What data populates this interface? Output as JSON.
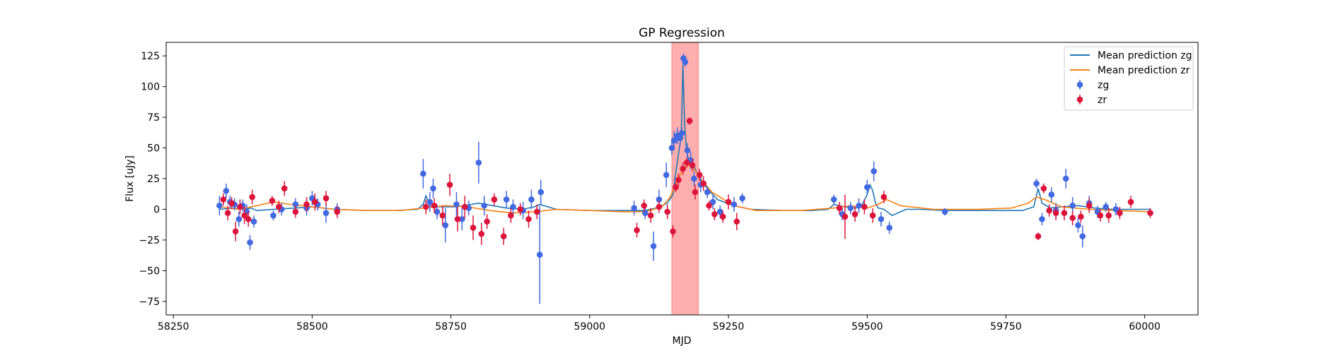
{
  "chart_data": {
    "type": "scatter",
    "title": "GP Regression",
    "xlabel": "MJD",
    "ylabel": "Flux [uJy]",
    "xlim": [
      58237,
      60096
    ],
    "ylim": [
      -86,
      136
    ],
    "xticks": [
      58250,
      58500,
      58750,
      59000,
      59250,
      59500,
      59750,
      60000
    ],
    "yticks": [
      -75,
      -50,
      -25,
      0,
      25,
      50,
      75,
      100,
      125
    ],
    "legend_position": "top-right",
    "highlight_span": {
      "x0": 59148,
      "x1": 59196,
      "color": "#ff6b6b"
    },
    "series": [
      {
        "name": "Mean prediction zg",
        "kind": "line",
        "color": "#1f77b4",
        "x": [
          58333,
          58360,
          58380,
          58390,
          58400,
          58430,
          58470,
          58500,
          58540,
          58600,
          58650,
          58690,
          58700,
          58705,
          58712,
          58730,
          58760,
          58800,
          58850,
          58880,
          58900,
          58910,
          58940,
          59000,
          59080,
          59100,
          59120,
          59140,
          59150,
          59155,
          59160,
          59165,
          59168,
          59171,
          59174,
          59178,
          59185,
          59195,
          59210,
          59230,
          59260,
          59290,
          59350,
          59400,
          59430,
          59440,
          59460,
          59480,
          59490,
          59500,
          59505,
          59510,
          59515,
          59520,
          59530,
          59545,
          59570,
          59600,
          59640,
          59700,
          59780,
          59800,
          59808,
          59815,
          59830,
          59850,
          59880,
          59910,
          59940,
          59970,
          60010
        ],
        "y": [
          0,
          1,
          0,
          1,
          -1,
          0,
          1,
          2,
          0,
          -1,
          -1,
          0,
          4,
          11,
          3,
          2,
          2,
          5,
          1,
          0,
          2,
          4,
          0,
          -1,
          -1,
          -1,
          1,
          5,
          12,
          30,
          45,
          60,
          118,
          70,
          50,
          40,
          38,
          28,
          18,
          8,
          3,
          0,
          -1,
          -1,
          0,
          4,
          2,
          1,
          3,
          12,
          20,
          15,
          5,
          1,
          0,
          -5,
          0,
          0,
          -1,
          -1,
          -1,
          2,
          17,
          5,
          1,
          2,
          3,
          1,
          0,
          0,
          0
        ]
      },
      {
        "name": "Mean prediction zr",
        "kind": "line",
        "color": "#ff7f0e",
        "x": [
          58333,
          58370,
          58400,
          58430,
          58460,
          58500,
          58540,
          58600,
          58660,
          58700,
          58740,
          58780,
          58820,
          58860,
          58900,
          58940,
          59000,
          59060,
          59100,
          59130,
          59145,
          59155,
          59165,
          59175,
          59185,
          59200,
          59220,
          59260,
          59300,
          59380,
          59440,
          59470,
          59500,
          59520,
          59535,
          59560,
          59620,
          59700,
          59760,
          59790,
          59805,
          59820,
          59850,
          59900,
          59950,
          60010
        ],
        "y": [
          2,
          0,
          3,
          6,
          4,
          2,
          0,
          -1,
          -1,
          1,
          3,
          2,
          -1,
          -3,
          -2,
          0,
          -1,
          -2,
          -2,
          2,
          10,
          20,
          30,
          36,
          35,
          25,
          14,
          3,
          -1,
          -1,
          1,
          3,
          1,
          4,
          8,
          3,
          0,
          0,
          1,
          5,
          10,
          8,
          2,
          0,
          -1,
          -2
        ]
      },
      {
        "name": "zg",
        "kind": "errorbar",
        "color": "#4169e1",
        "x": [
          58333,
          58345,
          58352,
          58360,
          58368,
          58375,
          58382,
          58388,
          58395,
          58430,
          58445,
          58470,
          58490,
          58500,
          58510,
          58525,
          58545,
          58700,
          58712,
          58718,
          58725,
          58740,
          58760,
          58770,
          58782,
          58800,
          58810,
          58850,
          58862,
          58880,
          58895,
          58910,
          58912,
          59080,
          59100,
          59115,
          59125,
          59138,
          59148,
          59152,
          59158,
          59163,
          59166,
          59169,
          59172,
          59176,
          59182,
          59188,
          59200,
          59212,
          59222,
          59235,
          59260,
          59275,
          59440,
          59455,
          59470,
          59485,
          59500,
          59512,
          59525,
          59540,
          59640,
          59805,
          59815,
          59832,
          59840,
          59858,
          59870,
          59880,
          59888,
          59900,
          59915,
          59930,
          59948
        ],
        "y": [
          3,
          15,
          6,
          4,
          -8,
          3,
          -2,
          -27,
          -10,
          -5,
          0,
          4,
          1,
          9,
          4,
          -3,
          0,
          29,
          6,
          17,
          -2,
          -13,
          4,
          -8,
          1,
          38,
          3,
          8,
          2,
          -1,
          8,
          -37,
          14,
          1,
          -3,
          -30,
          8,
          28,
          50,
          56,
          60,
          58,
          62,
          123,
          120,
          48,
          40,
          25,
          20,
          14,
          6,
          -2,
          4,
          9,
          8,
          -4,
          1,
          3,
          18,
          31,
          -8,
          -15,
          -2,
          21,
          -8,
          12,
          -1,
          25,
          3,
          -13,
          -22,
          5,
          -2,
          2,
          0
        ],
        "err": [
          8,
          6,
          5,
          5,
          6,
          5,
          6,
          6,
          5,
          4,
          5,
          5,
          6,
          6,
          5,
          8,
          5,
          12,
          8,
          8,
          6,
          14,
          10,
          9,
          6,
          17,
          8,
          7,
          6,
          7,
          8,
          40,
          10,
          6,
          5,
          12,
          8,
          10,
          6,
          8,
          7,
          6,
          5,
          4,
          4,
          6,
          7,
          6,
          6,
          5,
          6,
          5,
          6,
          4,
          4,
          5,
          5,
          6,
          6,
          8,
          6,
          5,
          3,
          4,
          5,
          6,
          6,
          8,
          7,
          6,
          9,
          6,
          5,
          4,
          5
        ]
      },
      {
        "name": "zr",
        "kind": "errorbar",
        "color": "#dc143c",
        "x": [
          58340,
          58348,
          58355,
          58362,
          58370,
          58378,
          58385,
          58392,
          58428,
          58440,
          58450,
          58470,
          58490,
          58505,
          58525,
          58545,
          58705,
          58720,
          58735,
          58748,
          58762,
          58775,
          58790,
          58805,
          58815,
          58828,
          58845,
          58858,
          58875,
          58890,
          58905,
          59085,
          59098,
          59110,
          59125,
          59140,
          59150,
          59155,
          59160,
          59168,
          59175,
          59180,
          59185,
          59190,
          59198,
          59205,
          59215,
          59225,
          59240,
          59250,
          59265,
          59450,
          59460,
          59478,
          59495,
          59510,
          59530,
          59808,
          59818,
          59828,
          59840,
          59855,
          59870,
          59885,
          59900,
          59920,
          59935,
          59955,
          59975,
          60010
        ],
        "y": [
          8,
          -3,
          5,
          -18,
          2,
          -5,
          -8,
          10,
          7,
          2,
          17,
          -2,
          4,
          6,
          9,
          -2,
          2,
          3,
          -5,
          20,
          -8,
          2,
          -15,
          -20,
          -10,
          8,
          -22,
          -5,
          0,
          -8,
          -2,
          -17,
          3,
          -5,
          2,
          -2,
          -18,
          18,
          24,
          33,
          38,
          72,
          36,
          14,
          28,
          21,
          3,
          -4,
          -6,
          6,
          -10,
          1,
          -6,
          -4,
          2,
          -5,
          10,
          -22,
          17,
          -1,
          -3,
          -3,
          -7,
          -6,
          3,
          -5,
          -5,
          -3,
          6,
          -3
        ],
        "err": [
          5,
          6,
          5,
          8,
          6,
          7,
          6,
          6,
          4,
          5,
          6,
          5,
          6,
          7,
          6,
          5,
          6,
          6,
          8,
          9,
          10,
          9,
          10,
          9,
          6,
          5,
          7,
          6,
          5,
          7,
          6,
          6,
          5,
          6,
          5,
          6,
          5,
          4,
          5,
          5,
          4,
          3,
          5,
          6,
          5,
          6,
          4,
          5,
          5,
          6,
          7,
          5,
          18,
          6,
          6,
          6,
          5,
          3,
          4,
          5,
          6,
          6,
          6,
          5,
          6,
          5,
          6,
          5,
          5,
          4
        ]
      }
    ]
  }
}
